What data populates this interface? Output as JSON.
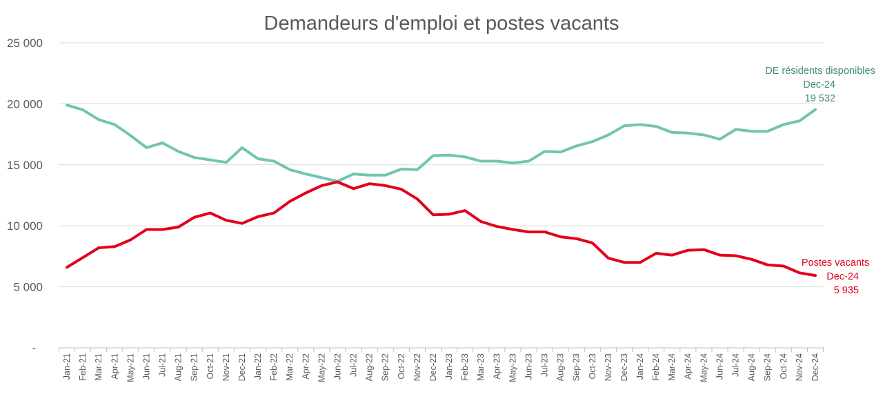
{
  "chart_data": {
    "type": "line",
    "title": "Demandeurs d'emploi et postes vacants",
    "xlabel": "",
    "ylabel": "",
    "ylim": [
      0,
      25000
    ],
    "yticks": [
      0,
      5000,
      10000,
      15000,
      20000,
      25000
    ],
    "ytick_labels": [
      "-",
      "5 000",
      "10 000",
      "15 000",
      "20 000",
      "25 000"
    ],
    "grid": true,
    "categories": [
      "Jan-21",
      "Feb-21",
      "Mar-21",
      "Apr-21",
      "May-21",
      "Jun-21",
      "Jul-21",
      "Aug-21",
      "Sep-21",
      "Oct-21",
      "Nov-21",
      "Dec-21",
      "Jan-22",
      "Feb-22",
      "Mar-22",
      "Apr-22",
      "May-22",
      "Jun-22",
      "Jul-22",
      "Aug-22",
      "Sep-22",
      "Oct-22",
      "Nov-22",
      "Dec-22",
      "Jan-23",
      "Feb-23",
      "Mar-23",
      "Apr-23",
      "May-23",
      "Jun-23",
      "Jul-23",
      "Aug-23",
      "Sep-23",
      "Oct-23",
      "Nov-23",
      "Dec-23",
      "Jan-24",
      "Feb-24",
      "Mar-24",
      "Apr-24",
      "May-24",
      "Jun-24",
      "Jul-24",
      "Aug-24",
      "Sep-24",
      "Oct-24",
      "Nov-24",
      "Dec-24"
    ],
    "series": [
      {
        "name": "DE résidents disponibles",
        "color": "#72c4b3",
        "label_color": "#3f8a73",
        "end_label": {
          "name": "DE résidents disponibles",
          "date": "Dec-24",
          "value": "19 532"
        },
        "values": [
          19900,
          19500,
          18700,
          18300,
          17400,
          16400,
          16800,
          16100,
          15600,
          15400,
          15200,
          16400,
          15500,
          15300,
          14600,
          14250,
          13950,
          13650,
          14250,
          14150,
          14150,
          14650,
          14600,
          15750,
          15800,
          15650,
          15300,
          15300,
          15150,
          15300,
          16100,
          16050,
          16550,
          16900,
          17450,
          18200,
          18300,
          18150,
          17650,
          17600,
          17450,
          17100,
          17900,
          17750,
          17750,
          18300,
          18600,
          19532
        ]
      },
      {
        "name": "Postes vacants",
        "color": "#e3001b",
        "label_color": "#e3001b",
        "end_label": {
          "name": "Postes vacants",
          "date": "Dec-24",
          "value": "5 935"
        },
        "values": [
          6600,
          7400,
          8200,
          8300,
          8850,
          9700,
          9700,
          9900,
          10700,
          11050,
          10450,
          10200,
          10750,
          11050,
          12000,
          12700,
          13300,
          13600,
          13050,
          13450,
          13300,
          13000,
          12200,
          10900,
          10950,
          11250,
          10350,
          9950,
          9700,
          9500,
          9500,
          9100,
          8950,
          8600,
          7350,
          7000,
          7000,
          7750,
          7600,
          8000,
          8050,
          7600,
          7550,
          7250,
          6800,
          6700,
          6150,
          5935
        ]
      }
    ]
  }
}
